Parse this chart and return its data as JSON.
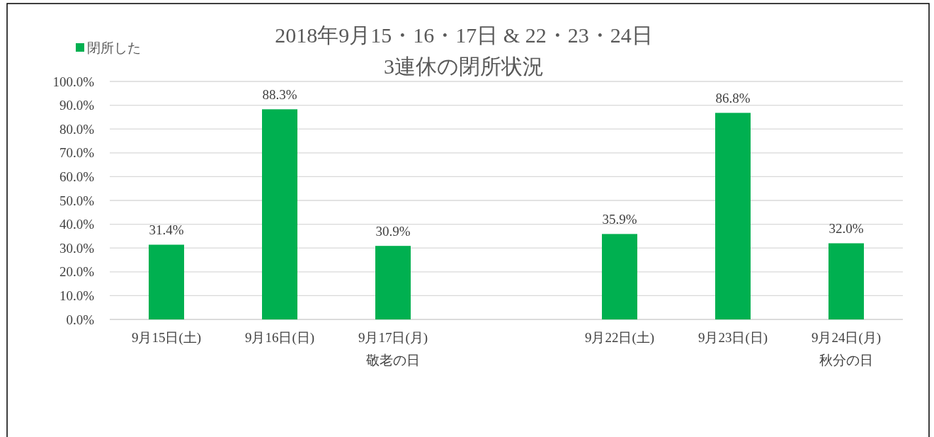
{
  "chart_data": {
    "type": "bar",
    "title": "2018年9月15・16・17日 & 22・23・24日\n3連休の閉所状況",
    "categories": [
      "9月15日(土)",
      "9月16日(日)",
      "9月17日(月)\n敬老の日",
      null,
      "9月22日(土)",
      "9月23日(日)",
      "9月24日(月)\n秋分の日"
    ],
    "series": [
      {
        "name": "閉所した",
        "color": "#00b050",
        "values": [
          31.4,
          88.3,
          30.9,
          null,
          35.9,
          86.8,
          32.0
        ],
        "value_labels": [
          "31.4%",
          "88.3%",
          "30.9%",
          null,
          "35.9%",
          "86.8%",
          "32.0%"
        ]
      }
    ],
    "ylim": [
      0,
      100
    ],
    "yticks": [
      {
        "value": 0,
        "label": "0.0%"
      },
      {
        "value": 10,
        "label": "10.0%"
      },
      {
        "value": 20,
        "label": "20.0%"
      },
      {
        "value": 30,
        "label": "30.0%"
      },
      {
        "value": 40,
        "label": "40.0%"
      },
      {
        "value": 50,
        "label": "50.0%"
      },
      {
        "value": 60,
        "label": "60.0%"
      },
      {
        "value": 70,
        "label": "70.0%"
      },
      {
        "value": 80,
        "label": "80.0%"
      },
      {
        "value": 90,
        "label": "90.0%"
      },
      {
        "value": 100,
        "label": "100.0%"
      }
    ],
    "grid": "y",
    "legend": "top left"
  }
}
